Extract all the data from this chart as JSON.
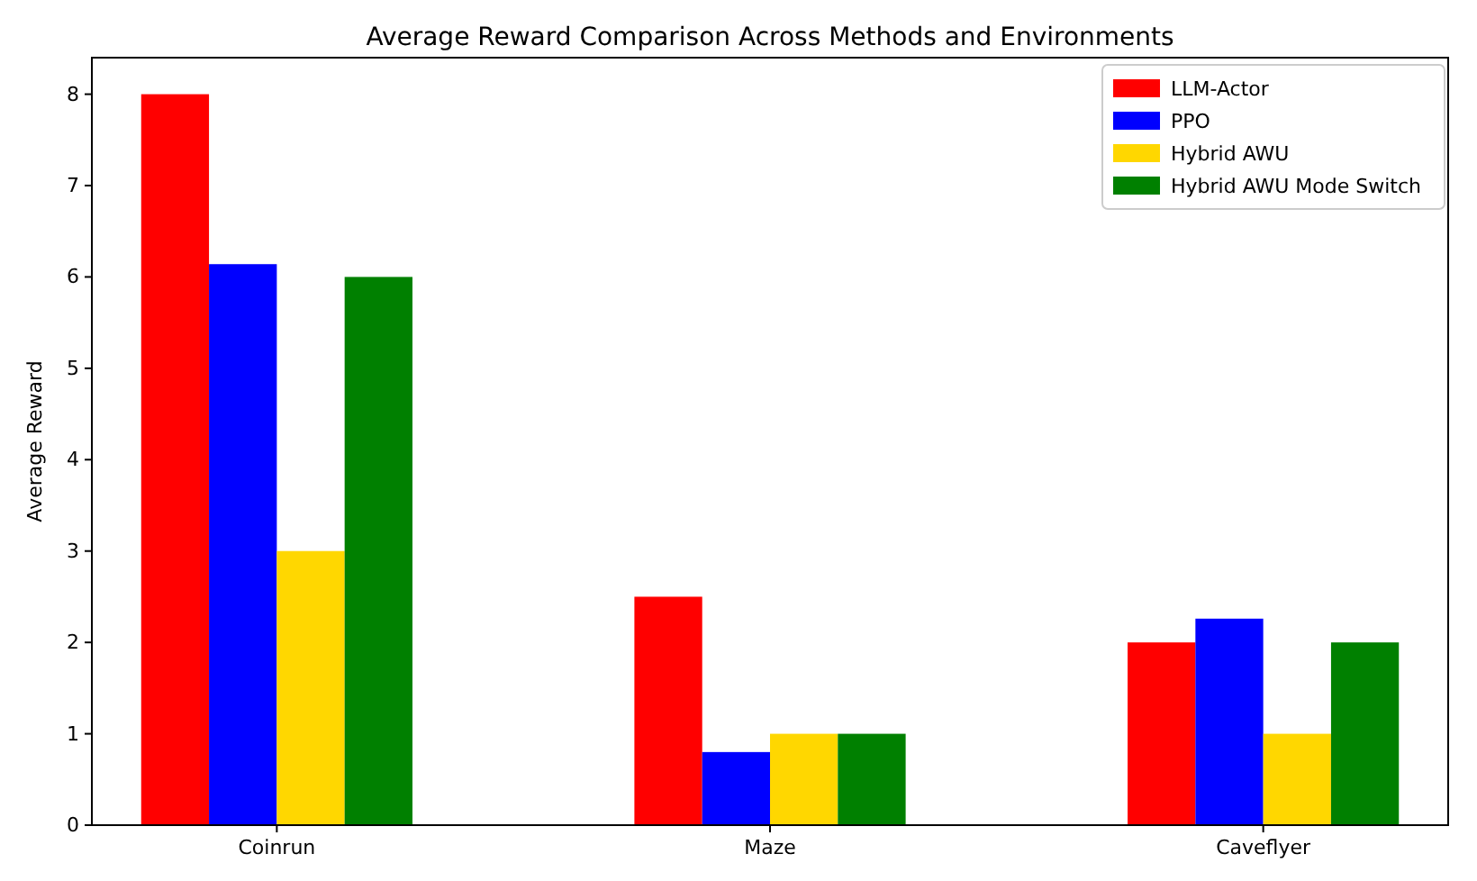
{
  "chart_data": {
    "type": "bar",
    "title": "Average Reward Comparison Across Methods and Environments",
    "ylabel": "Average Reward",
    "categories": [
      "Coinrun",
      "Maze",
      "Caveflyer"
    ],
    "series": [
      {
        "name": "LLM-Actor",
        "color": "#ff0000",
        "values": [
          8,
          2.5,
          2
        ]
      },
      {
        "name": "PPO",
        "color": "#0000ff",
        "values": [
          6.14,
          0.8,
          2.26
        ]
      },
      {
        "name": "Hybrid AWU",
        "color": "#ffd700",
        "values": [
          3,
          1,
          1
        ]
      },
      {
        "name": "Hybrid AWU Mode Switch",
        "color": "#008000",
        "values": [
          6,
          1,
          2
        ]
      }
    ],
    "ylim": [
      0,
      8.4
    ],
    "yticks": [
      0,
      1,
      2,
      3,
      4,
      5,
      6,
      7,
      8
    ],
    "legend": "top right"
  }
}
